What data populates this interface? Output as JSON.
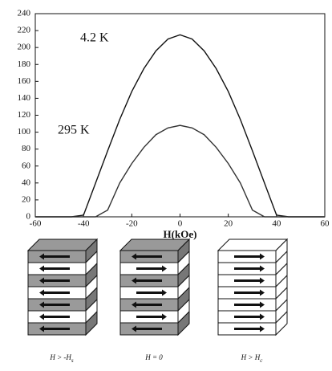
{
  "chart_data": {
    "type": "line",
    "x_label": "H(kOe)",
    "x": [
      -60,
      -55,
      -50,
      -45,
      -40,
      -35,
      -30,
      -25,
      -20,
      -15,
      -10,
      -5,
      0,
      5,
      10,
      15,
      20,
      25,
      30,
      35,
      40,
      45,
      50,
      55,
      60
    ],
    "series": [
      {
        "name": "4.2 K",
        "color": "#111111",
        "values": [
          0,
          0,
          0,
          0,
          2,
          40,
          78,
          115,
          148,
          175,
          196,
          210,
          215,
          210,
          196,
          175,
          148,
          115,
          78,
          40,
          2,
          0,
          0,
          0,
          0
        ]
      },
      {
        "name": "295 K",
        "color": "#333333",
        "values": [
          0,
          0,
          0,
          0,
          0,
          0,
          8,
          40,
          63,
          82,
          97,
          105,
          108,
          105,
          97,
          82,
          63,
          40,
          8,
          0,
          0,
          0,
          0,
          0,
          0
        ]
      }
    ],
    "xlim": [
      -60,
      60
    ],
    "xticks": [
      -60,
      -40,
      -20,
      0,
      20,
      40,
      60
    ],
    "ylim": [
      0,
      240
    ],
    "yticks": [
      0,
      20,
      40,
      60,
      80,
      100,
      120,
      140,
      160,
      180,
      200,
      220,
      240
    ]
  },
  "diagram": {
    "labels": [
      {
        "text": "H > -H",
        "sub": "s"
      },
      {
        "text": "H = 0",
        "sub": null
      },
      {
        "text": "H > H",
        "sub": "c"
      }
    ]
  }
}
